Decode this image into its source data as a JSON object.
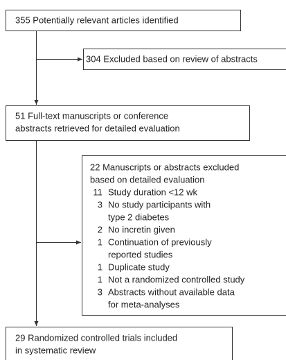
{
  "identified": {
    "lines": [
      "355 Potentially relevant articles identified"
    ]
  },
  "excluded_abstracts": {
    "lines": [
      "304 Excluded based on review of abstracts"
    ]
  },
  "retrieved": {
    "lines": [
      "51 Full-text manuscripts or conference",
      "abstracts retrieved for detailed evaluation"
    ]
  },
  "excluded_detailed": {
    "heading": [
      "22 Manuscripts or abstracts excluded",
      "based on detailed evaluation"
    ],
    "items": [
      {
        "count": 11,
        "lines": [
          "Study duration <12 wk"
        ]
      },
      {
        "count": 3,
        "lines": [
          "No study participants with",
          "type 2 diabetes"
        ]
      },
      {
        "count": 2,
        "lines": [
          "No incretin given"
        ]
      },
      {
        "count": 1,
        "lines": [
          "Continuation of previously",
          "reported studies"
        ]
      },
      {
        "count": 1,
        "lines": [
          "Duplicate study"
        ]
      },
      {
        "count": 1,
        "lines": [
          "Not a randomized controlled study"
        ]
      },
      {
        "count": 3,
        "lines": [
          "Abstracts without available data",
          "for meta-analyses"
        ]
      }
    ]
  },
  "included": {
    "lines": [
      "29 Randomized controlled trials included",
      "in systematic review"
    ]
  }
}
